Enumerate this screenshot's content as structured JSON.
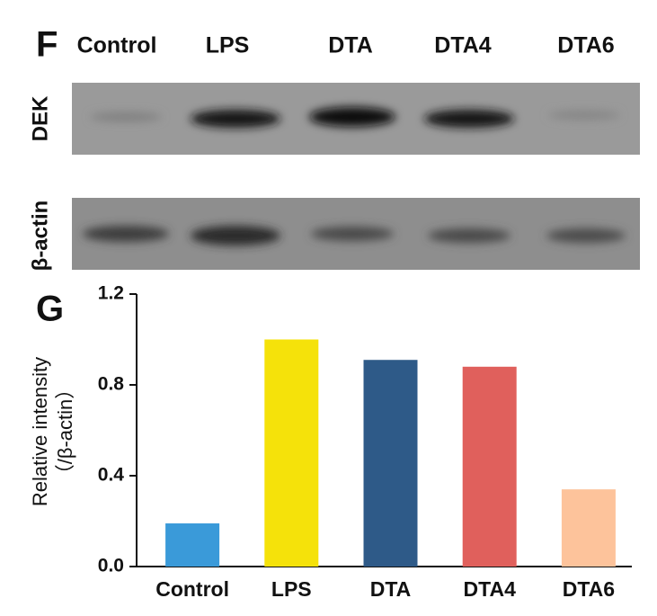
{
  "blot": {
    "label": "F",
    "lanes": [
      "Control",
      "LPS",
      "DTA",
      "DTA4",
      "DTA6"
    ],
    "rows": [
      "DEK",
      "β-actin"
    ]
  },
  "chart_data": {
    "type": "bar",
    "panel_label": "G",
    "ylabel": [
      "Relative intensity",
      "（/β-actin）"
    ],
    "categories": [
      "Control",
      "LPS",
      "DTA",
      "DTA4",
      "DTA6"
    ],
    "values": [
      0.19,
      1.0,
      0.91,
      0.88,
      0.34
    ],
    "colors": [
      "#3a9ad9",
      "#f5e20a",
      "#2e5a88",
      "#e0605c",
      "#fdc39b"
    ],
    "ylim": [
      0,
      1.2
    ],
    "yticks": [
      {
        "value": 0,
        "label": "0.0"
      },
      0.4,
      0.8,
      1.2
    ]
  }
}
